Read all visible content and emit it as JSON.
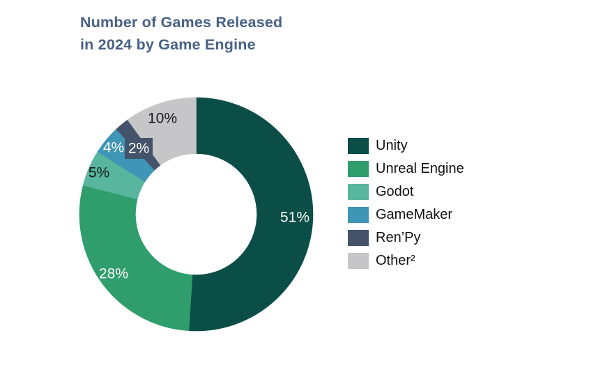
{
  "page": {
    "background_color": "#ffffff",
    "title_color": "#486285"
  },
  "chart_data": {
    "type": "pie",
    "subtype": "donut",
    "title": "Number of Games Released in 2024 by Game Engine",
    "unit": "percent",
    "start_angle_deg": 0,
    "direction": "clockwise",
    "donut_hole_ratio": 0.52,
    "legend_position": "right",
    "categories": [
      "Unity",
      "Unreal Engine",
      "Godot",
      "GameMaker",
      "Ren’Py",
      "Other²"
    ],
    "values": [
      51,
      28,
      5,
      4,
      2,
      10
    ],
    "segments": [
      {
        "label": "Unity",
        "value": 51,
        "pct_label": "51%",
        "color": "#0B4D47",
        "label_color": "#fbfaf5"
      },
      {
        "label": "Unreal Engine",
        "value": 28,
        "pct_label": "28%",
        "color": "#2F9E6C",
        "label_color": "#fbfaf5"
      },
      {
        "label": "Godot",
        "value": 5,
        "pct_label": "5%",
        "color": "#57B69D",
        "label_color": "#1a1a1a"
      },
      {
        "label": "GameMaker",
        "value": 4,
        "pct_label": "4%",
        "color": "#3E95B5",
        "label_color": "#fbfaf5"
      },
      {
        "label": "Ren’Py",
        "value": 2,
        "pct_label": "2%",
        "color": "#44536A",
        "label_color": "#fbfaf5",
        "callout": true
      },
      {
        "label": "Other²",
        "value": 10,
        "pct_label": "10%",
        "color": "#C6C6C9",
        "label_color": "#1a1a1a"
      }
    ]
  }
}
